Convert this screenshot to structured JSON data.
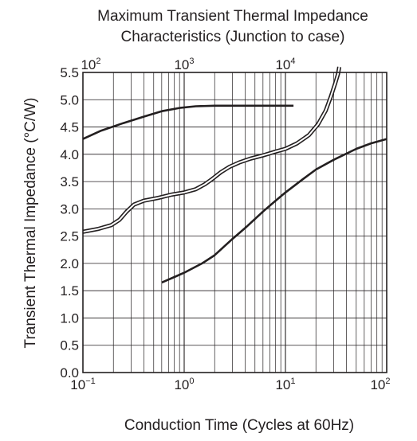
{
  "chart_data": {
    "type": "line",
    "title_line1": "Maximum Transient Thermal Impedance",
    "title_line2": "Characteristics (Junction to case)",
    "xlabel": "Conduction Time (Cycles at 60Hz)",
    "ylabel": "Transient Thermal Impedance  (°C/W)",
    "x_scale": "log",
    "xlim": [
      0.1,
      100
    ],
    "ylim": [
      0,
      5.5
    ],
    "grid": true,
    "y_ticks": [
      "0.0",
      "0.5",
      "1.0",
      "1.5",
      "2.0",
      "2.5",
      "3.0",
      "3.5",
      "4.0",
      "4.5",
      "5.0",
      "5.5"
    ],
    "x_ticks": [
      {
        "value": 0.1,
        "base": "10",
        "exp": "−1"
      },
      {
        "value": 1,
        "base": "10",
        "exp": "0"
      },
      {
        "value": 10,
        "base": "10",
        "exp": "1"
      },
      {
        "value": 100,
        "base": "10",
        "exp": "2"
      }
    ],
    "top_ticks": [
      {
        "value": 0.1,
        "base": "10",
        "exp": "2"
      },
      {
        "value": 1,
        "base": "10",
        "exp": "3"
      },
      {
        "value": 10,
        "base": "10",
        "exp": "4"
      }
    ],
    "series": [
      {
        "style": "solid",
        "x": [
          0.1,
          0.15,
          0.25,
          0.4,
          0.6,
          0.9,
          1.3,
          2,
          3,
          5,
          8,
          12
        ],
        "y": [
          4.28,
          4.43,
          4.57,
          4.69,
          4.79,
          4.85,
          4.88,
          4.89,
          4.89,
          4.89,
          4.89,
          4.89
        ]
      },
      {
        "style": "double",
        "x": [
          0.1,
          0.14,
          0.19,
          0.23,
          0.27,
          0.32,
          0.4,
          0.55,
          0.75,
          1,
          1.3,
          1.6,
          1.9,
          2.3,
          2.8,
          3.5,
          4.5,
          6,
          8,
          10,
          13,
          17,
          21,
          25,
          28,
          31,
          33,
          34
        ],
        "y": [
          2.58,
          2.63,
          2.7,
          2.8,
          2.95,
          3.08,
          3.15,
          3.2,
          3.26,
          3.3,
          3.36,
          3.45,
          3.55,
          3.67,
          3.77,
          3.85,
          3.92,
          3.98,
          4.05,
          4.1,
          4.2,
          4.35,
          4.55,
          4.8,
          5.05,
          5.3,
          5.47,
          5.6
        ]
      },
      {
        "style": "solid",
        "x": [
          0.6,
          0.8,
          1,
          1.5,
          2,
          3,
          4,
          6,
          8,
          10,
          15,
          20,
          30,
          50,
          70,
          100
        ],
        "y": [
          1.65,
          1.75,
          1.83,
          2.0,
          2.15,
          2.45,
          2.65,
          2.95,
          3.15,
          3.3,
          3.55,
          3.72,
          3.9,
          4.1,
          4.2,
          4.28
        ]
      }
    ]
  }
}
